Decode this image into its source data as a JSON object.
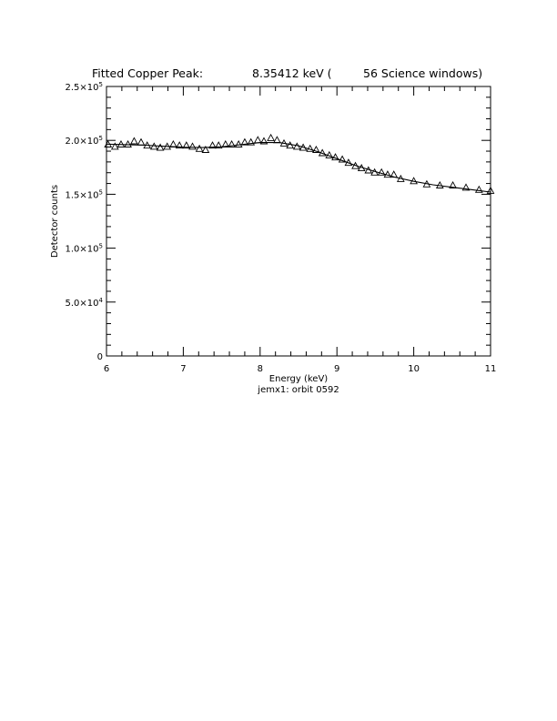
{
  "chart_data": {
    "type": "scatter",
    "title": {
      "prefix": "Fitted Copper Peak:",
      "value": "8.35412 keV (",
      "suffix": "56 Science windows)"
    },
    "xlabel": "Energy (keV)",
    "subtitle": "jemx1: orbit 0592",
    "ylabel": "Detector counts",
    "xlim": [
      6,
      11
    ],
    "ylim": [
      0,
      250000
    ],
    "x_ticks": [
      {
        "value": 6,
        "label": "6"
      },
      {
        "value": 7,
        "label": "7"
      },
      {
        "value": 8,
        "label": "8"
      },
      {
        "value": 9,
        "label": "9"
      },
      {
        "value": 10,
        "label": "10"
      },
      {
        "value": 11,
        "label": "11"
      }
    ],
    "y_ticks": [
      {
        "value": 0,
        "mantissa": "0",
        "exp": ""
      },
      {
        "value": 50000,
        "mantissa": "5.0×10",
        "exp": "4"
      },
      {
        "value": 100000,
        "mantissa": "1.0×10",
        "exp": "5"
      },
      {
        "value": 150000,
        "mantissa": "1.5×10",
        "exp": "5"
      },
      {
        "value": 200000,
        "mantissa": "2.0×10",
        "exp": "5"
      },
      {
        "value": 250000,
        "mantissa": "2.5×10",
        "exp": "5"
      }
    ],
    "series": [
      {
        "marker": "triangle",
        "x": [
          6.02,
          6.11,
          6.19,
          6.28,
          6.36,
          6.45,
          6.53,
          6.62,
          6.7,
          6.79,
          6.87,
          6.95,
          7.04,
          7.12,
          7.21,
          7.29,
          7.38,
          7.46,
          7.55,
          7.63,
          7.72,
          7.8,
          7.88,
          7.97,
          8.05,
          8.14,
          8.22,
          8.31,
          8.39,
          8.48,
          8.56,
          8.65,
          8.73,
          8.81,
          8.9,
          8.98,
          9.07,
          9.15,
          9.24,
          9.32,
          9.41,
          9.49,
          9.58,
          9.66,
          9.74,
          9.83,
          10.0,
          10.17,
          10.34,
          10.51,
          10.68,
          10.85,
          11.0
        ],
        "y": [
          196000,
          194000,
          196000,
          196000,
          199000,
          198000,
          195000,
          194000,
          193000,
          194000,
          196000,
          195000,
          195000,
          194000,
          192000,
          191000,
          195000,
          195000,
          196000,
          196000,
          196000,
          198000,
          198000,
          200000,
          199000,
          202000,
          200000,
          197000,
          195000,
          194000,
          193000,
          192000,
          191000,
          188000,
          186000,
          184000,
          182000,
          179000,
          176000,
          174000,
          172000,
          170000,
          170000,
          168000,
          168000,
          164000,
          162000,
          159000,
          158000,
          158000,
          156000,
          154000,
          153000
        ]
      },
      {
        "type": "line",
        "x": [
          6.0,
          6.25,
          6.5,
          6.75,
          7.0,
          7.25,
          7.5,
          7.75,
          8.0,
          8.25,
          8.5,
          8.75,
          9.0,
          9.25,
          9.5,
          9.75,
          10.0,
          10.25,
          10.5,
          10.75,
          11.0
        ],
        "y": [
          196500,
          196000,
          195500,
          194500,
          193700,
          193300,
          194000,
          196000,
          198000,
          198000,
          195000,
          189500,
          183000,
          176500,
          171000,
          166000,
          162000,
          158800,
          156500,
          154300,
          152000
        ]
      }
    ]
  }
}
